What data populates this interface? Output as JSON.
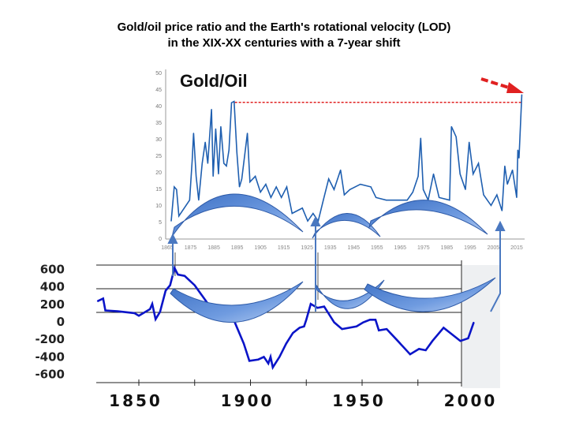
{
  "title_line1": "Gold/oil price ratio and the Earth's rotational velocity (LOD)",
  "title_line2": "in the XIX-XX centuries with a 7-year shift",
  "chart_data": [
    {
      "type": "line",
      "title": "Gold/Oil",
      "xlabel": "",
      "ylabel": "",
      "xlim": [
        1865,
        2017
      ],
      "ylim": [
        0,
        50
      ],
      "yticks": [
        "0",
        "5",
        "10",
        "15",
        "20",
        "25",
        "30",
        "35",
        "40",
        "45",
        "50"
      ],
      "xticks": [
        "1865",
        "1875",
        "1885",
        "1895",
        "1905",
        "1915",
        "1925",
        "1935",
        "1945",
        "1955",
        "1965",
        "1975",
        "1985",
        "1995",
        "2005",
        "2015"
      ],
      "reference_line": {
        "value": 41,
        "from": 1894,
        "to": 2017,
        "color": "#e02020"
      },
      "series": [
        {
          "name": "Gold/Oil",
          "color": "#1f5fb0",
          "x": [
            1866.7,
            1868,
            1869,
            1870,
            1874.6,
            1875.7,
            1876.3,
            1877.4,
            1878.5,
            1880,
            1881.3,
            1882.4,
            1884,
            1884.7,
            1885.8,
            1887,
            1888,
            1889.3,
            1890.4,
            1891.5,
            1892.6,
            1893.7,
            1894.9,
            1896,
            1897,
            1899.4,
            1900.5,
            1902.8,
            1905,
            1907.3,
            1909.5,
            1911.8,
            1914,
            1916.3,
            1918.6,
            1923,
            1925.3,
            1927.6,
            1929.8,
            1932,
            1934.3,
            1936.6,
            1939.4,
            1941,
            1943.4,
            1947.9,
            1952.4,
            1954.6,
            1959,
            1968,
            1970.4,
            1972.7,
            1973.8,
            1974.9,
            1977,
            1979.3,
            1981.7,
            1986.2,
            1987,
            1989,
            1990.7,
            1993,
            1994.6,
            1996.3,
            1998.6,
            2000.8,
            2004,
            2006.5,
            2008.7,
            2009.9,
            2011,
            2013.2,
            2015,
            2015.5,
            2016,
            2017.2
          ],
          "y": [
            5.2,
            15.5,
            14.7,
            6.7,
            11.5,
            23.4,
            31.7,
            18.7,
            11.5,
            22.6,
            29,
            22.6,
            38.9,
            18.7,
            33,
            19.4,
            33.7,
            22.6,
            21.8,
            26.6,
            40.9,
            41.3,
            25.8,
            15.5,
            17.9,
            31.7,
            17,
            18.7,
            13.9,
            16.3,
            12.3,
            15.5,
            12.3,
            15.5,
            7.5,
            9.1,
            5.2,
            7.5,
            5.2,
            11.5,
            17.9,
            14.7,
            20.6,
            13.1,
            14.7,
            16.3,
            15.5,
            12.3,
            11.5,
            11.5,
            13.9,
            18.7,
            30.2,
            14.7,
            11.5,
            19.4,
            12.3,
            11.5,
            33.7,
            30.6,
            19.4,
            14.7,
            29,
            19.4,
            22.6,
            13.1,
            9.9,
            13.1,
            8.3,
            21.8,
            16.3,
            20.6,
            12.3,
            26.6,
            24.2,
            43.3
          ]
        }
      ]
    },
    {
      "type": "line",
      "title": "LOD",
      "xlabel": "",
      "ylabel": "",
      "xlim": [
        1831,
        2022
      ],
      "ylim": [
        -600,
        600
      ],
      "yticks": [
        "600",
        "400",
        "200",
        "0",
        "-200",
        "-400",
        "-600"
      ],
      "xticks": [
        "1850",
        "1900",
        "1950",
        "2000"
      ],
      "series": [
        {
          "name": "LOD",
          "color": "#0a14c8",
          "x": [
            1831.5,
            1834,
            1835,
            1840.5,
            1848,
            1850,
            1855,
            1856,
            1857.5,
            1859.5,
            1862,
            1864,
            1866,
            1867.5,
            1870.5,
            1875,
            1881,
            1891,
            1894,
            1897,
            1899.5,
            1903.5,
            1906,
            1908,
            1909,
            1910,
            1913,
            1916,
            1919,
            1922,
            1924,
            1925,
            1927,
            1930,
            1933,
            1937.5,
            1941,
            1947.5,
            1950.5,
            1953.5,
            1956,
            1957.5,
            1961,
            1966,
            1971.5,
            1975.5,
            1978.5,
            1981.5,
            1986.5,
            1989.5,
            1994,
            1997.5,
            2000
          ],
          "y": [
            236,
            267,
            130,
            121,
            100,
            70,
            145,
            205,
            30,
            115,
            357,
            418,
            615,
            540,
            525,
            418,
            205,
            115,
            -67,
            -248,
            -445,
            -430,
            -400,
            -475,
            -400,
            -520,
            -400,
            -248,
            -127,
            -67,
            -52,
            24,
            205,
            160,
            175,
            -6,
            -82,
            -52,
            -6,
            24,
            24,
            -97,
            -82,
            -218,
            -370,
            -309,
            -324,
            -218,
            -67,
            -127,
            -218,
            -188,
            -6
          ]
        }
      ]
    }
  ]
}
